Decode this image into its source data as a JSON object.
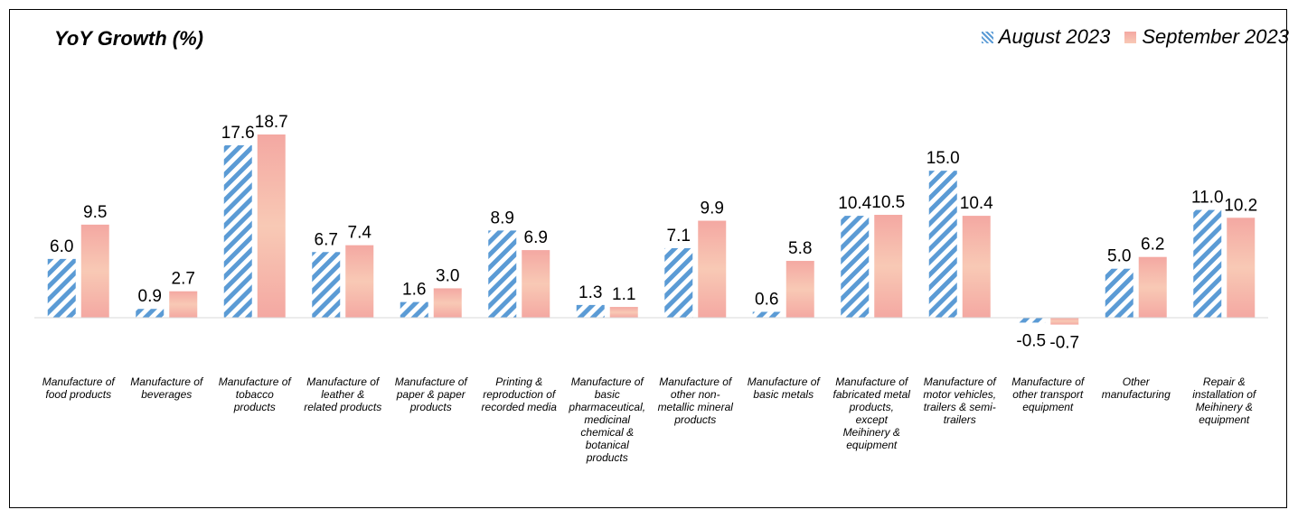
{
  "chart_data": {
    "type": "bar",
    "title": "YoY Growth (%)",
    "categories": [
      "Manufacture of food products",
      "Manufacture of beverages",
      "Manufacture of tobacco products",
      "Manufacture of leather & related products",
      "Manufacture of paper & paper products",
      "Printing & reproduction of recorded media",
      "Manufacture of basic pharmaceutical, medicinal chemical & botanical products",
      "Manufacture of other non-metallic mineral products",
      "Manufacture of basic metals",
      "Manufacture of fabricated metal products, except Meihinery & equipment",
      "Manufacture of motor vehicles, trailers & semi-trailers",
      "Manufacture of other transport equipment",
      "Other manufacturing",
      "Repair & installation of Meihinery & equipment"
    ],
    "series": [
      {
        "name": "August 2023",
        "values": [
          6.0,
          0.9,
          17.6,
          6.7,
          1.6,
          8.9,
          1.3,
          7.1,
          0.6,
          10.4,
          15.0,
          -0.5,
          5.0,
          11.0
        ],
        "labels": [
          "6.0",
          "0.9",
          "17.6",
          "6.7",
          "1.6",
          "8.9",
          "1.3",
          "7.1",
          "0.6",
          "10.4",
          "15.0",
          "-0.5",
          "5.0",
          "11.0"
        ]
      },
      {
        "name": "September 2023",
        "values": [
          9.5,
          2.7,
          18.7,
          7.4,
          3.0,
          6.9,
          1.1,
          9.9,
          5.8,
          10.5,
          10.4,
          -0.7,
          6.2,
          10.2
        ],
        "labels": [
          "9.5",
          "2.7",
          "18.7",
          "7.4",
          "3.0",
          "6.9",
          "1.1",
          "9.9",
          "5.8",
          "10.5",
          "10.4",
          "-0.7",
          "6.2",
          "10.2"
        ]
      }
    ],
    "legend_position": "top-right",
    "grid": false,
    "colors": {
      "august": "#5b9bd5",
      "september_top": "#f4a8a2",
      "september_bottom": "#f8c9b5"
    }
  },
  "category_label_lines": [
    [
      "Manufacture of",
      "food products"
    ],
    [
      "Manufacture of",
      "beverages"
    ],
    [
      "Manufacture of",
      "tobacco",
      "products"
    ],
    [
      "Manufacture of",
      "leather &",
      "related products"
    ],
    [
      "Manufacture of",
      "paper & paper",
      "products"
    ],
    [
      "Printing &",
      "reproduction of",
      "recorded media"
    ],
    [
      "Manufacture of",
      "basic",
      "pharmaceutical,",
      "medicinal",
      "chemical &",
      "botanical",
      "products"
    ],
    [
      "Manufacture of",
      "other non-",
      "metallic mineral",
      "products"
    ],
    [
      "Manufacture of",
      "basic metals"
    ],
    [
      "Manufacture of",
      "fabricated metal",
      "products,",
      "except",
      "Meihinery &",
      "equipment"
    ],
    [
      "Manufacture of",
      "motor vehicles,",
      "trailers & semi-",
      "trailers"
    ],
    [
      "Manufacture of",
      "other transport",
      "equipment"
    ],
    [
      "Other",
      "manufacturing"
    ],
    [
      "Repair &",
      "installation of",
      "Meihinery &",
      "equipment"
    ]
  ]
}
